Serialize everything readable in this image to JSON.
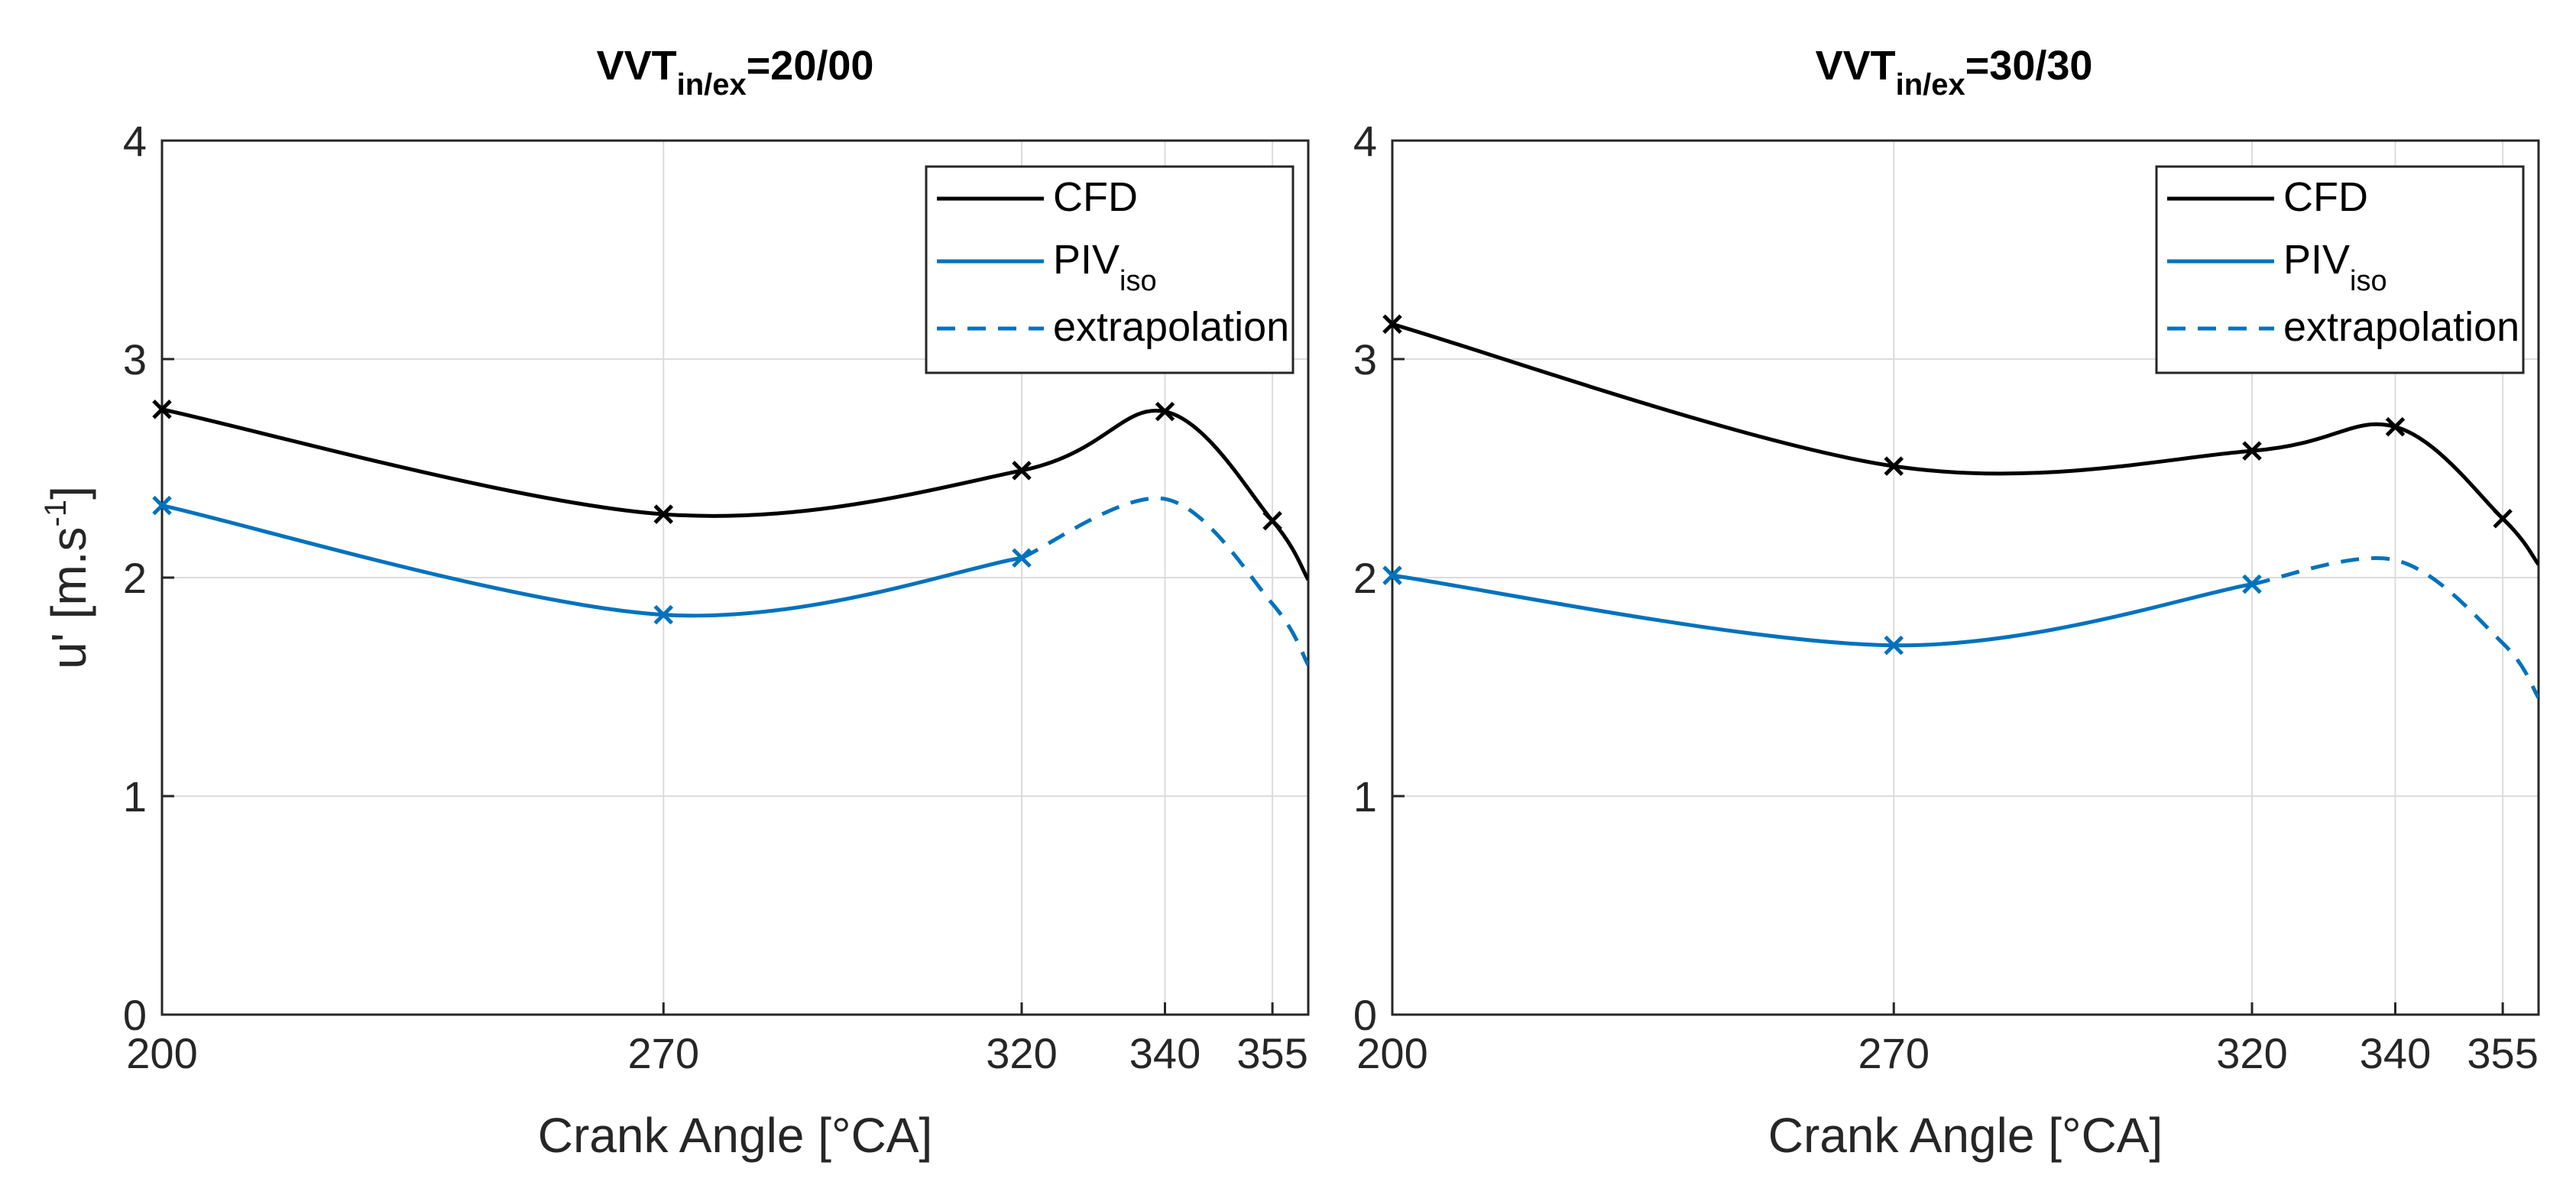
{
  "chart_data": [
    {
      "type": "line",
      "title_main": "VVT",
      "title_sub": "in/ex",
      "title_tail": "=20/00",
      "xlabel": "Crank Angle [°CA]",
      "ylabel_main": "u' [m.s",
      "ylabel_sup": "-1",
      "ylabel_tail": "]",
      "xlim": [
        200,
        360
      ],
      "ylim": [
        0,
        4
      ],
      "xticks": [
        200,
        270,
        320,
        340,
        355
      ],
      "yticks": [
        0,
        1,
        2,
        3,
        4
      ],
      "grid": true,
      "legend_position": "top-right",
      "legend": [
        {
          "main": "CFD",
          "sub": ""
        },
        {
          "main": "PIV",
          "sub": "iso"
        },
        {
          "main": "extrapolation",
          "sub": ""
        }
      ],
      "series": [
        {
          "name": "CFD",
          "style": "solid",
          "color": "#000000",
          "x": [
            200,
            270,
            320,
            340,
            355,
            360
          ],
          "y": [
            2.77,
            2.29,
            2.49,
            2.76,
            2.26,
            1.99
          ],
          "marker_indices": [
            0,
            1,
            2,
            3,
            4
          ]
        },
        {
          "name": "PIV_iso",
          "style": "solid",
          "color": "#0072BD",
          "x": [
            200,
            270,
            320
          ],
          "y": [
            2.33,
            1.83,
            2.09
          ],
          "marker_indices": [
            0,
            1,
            2
          ]
        },
        {
          "name": "extrapolation",
          "style": "dashed",
          "color": "#0072BD",
          "x": [
            320,
            340,
            355,
            360
          ],
          "y": [
            2.09,
            2.36,
            1.88,
            1.6
          ],
          "marker_indices": []
        }
      ]
    },
    {
      "type": "line",
      "title_main": "VVT",
      "title_sub": "in/ex",
      "title_tail": "=30/30",
      "xlabel": "Crank Angle [°CA]",
      "xlim": [
        200,
        360
      ],
      "ylim": [
        0,
        4
      ],
      "xticks": [
        200,
        270,
        320,
        340,
        355
      ],
      "yticks": [
        0,
        1,
        2,
        3,
        4
      ],
      "grid": true,
      "legend_position": "top-right",
      "legend": [
        {
          "main": "CFD",
          "sub": ""
        },
        {
          "main": "PIV",
          "sub": "iso"
        },
        {
          "main": "extrapolation",
          "sub": ""
        }
      ],
      "series": [
        {
          "name": "CFD",
          "style": "solid",
          "color": "#000000",
          "x": [
            200,
            270,
            320,
            340,
            355,
            360
          ],
          "y": [
            3.16,
            2.51,
            2.58,
            2.69,
            2.27,
            2.06
          ],
          "marker_indices": [
            0,
            1,
            2,
            3,
            4
          ]
        },
        {
          "name": "PIV_iso",
          "style": "solid",
          "color": "#0072BD",
          "x": [
            200,
            270,
            320
          ],
          "y": [
            2.01,
            1.69,
            1.97
          ],
          "marker_indices": [
            0,
            1,
            2
          ]
        },
        {
          "name": "extrapolation",
          "style": "dashed",
          "color": "#0072BD",
          "x": [
            320,
            340,
            355,
            360
          ],
          "y": [
            1.97,
            2.08,
            1.7,
            1.45
          ],
          "marker_indices": []
        }
      ]
    }
  ]
}
